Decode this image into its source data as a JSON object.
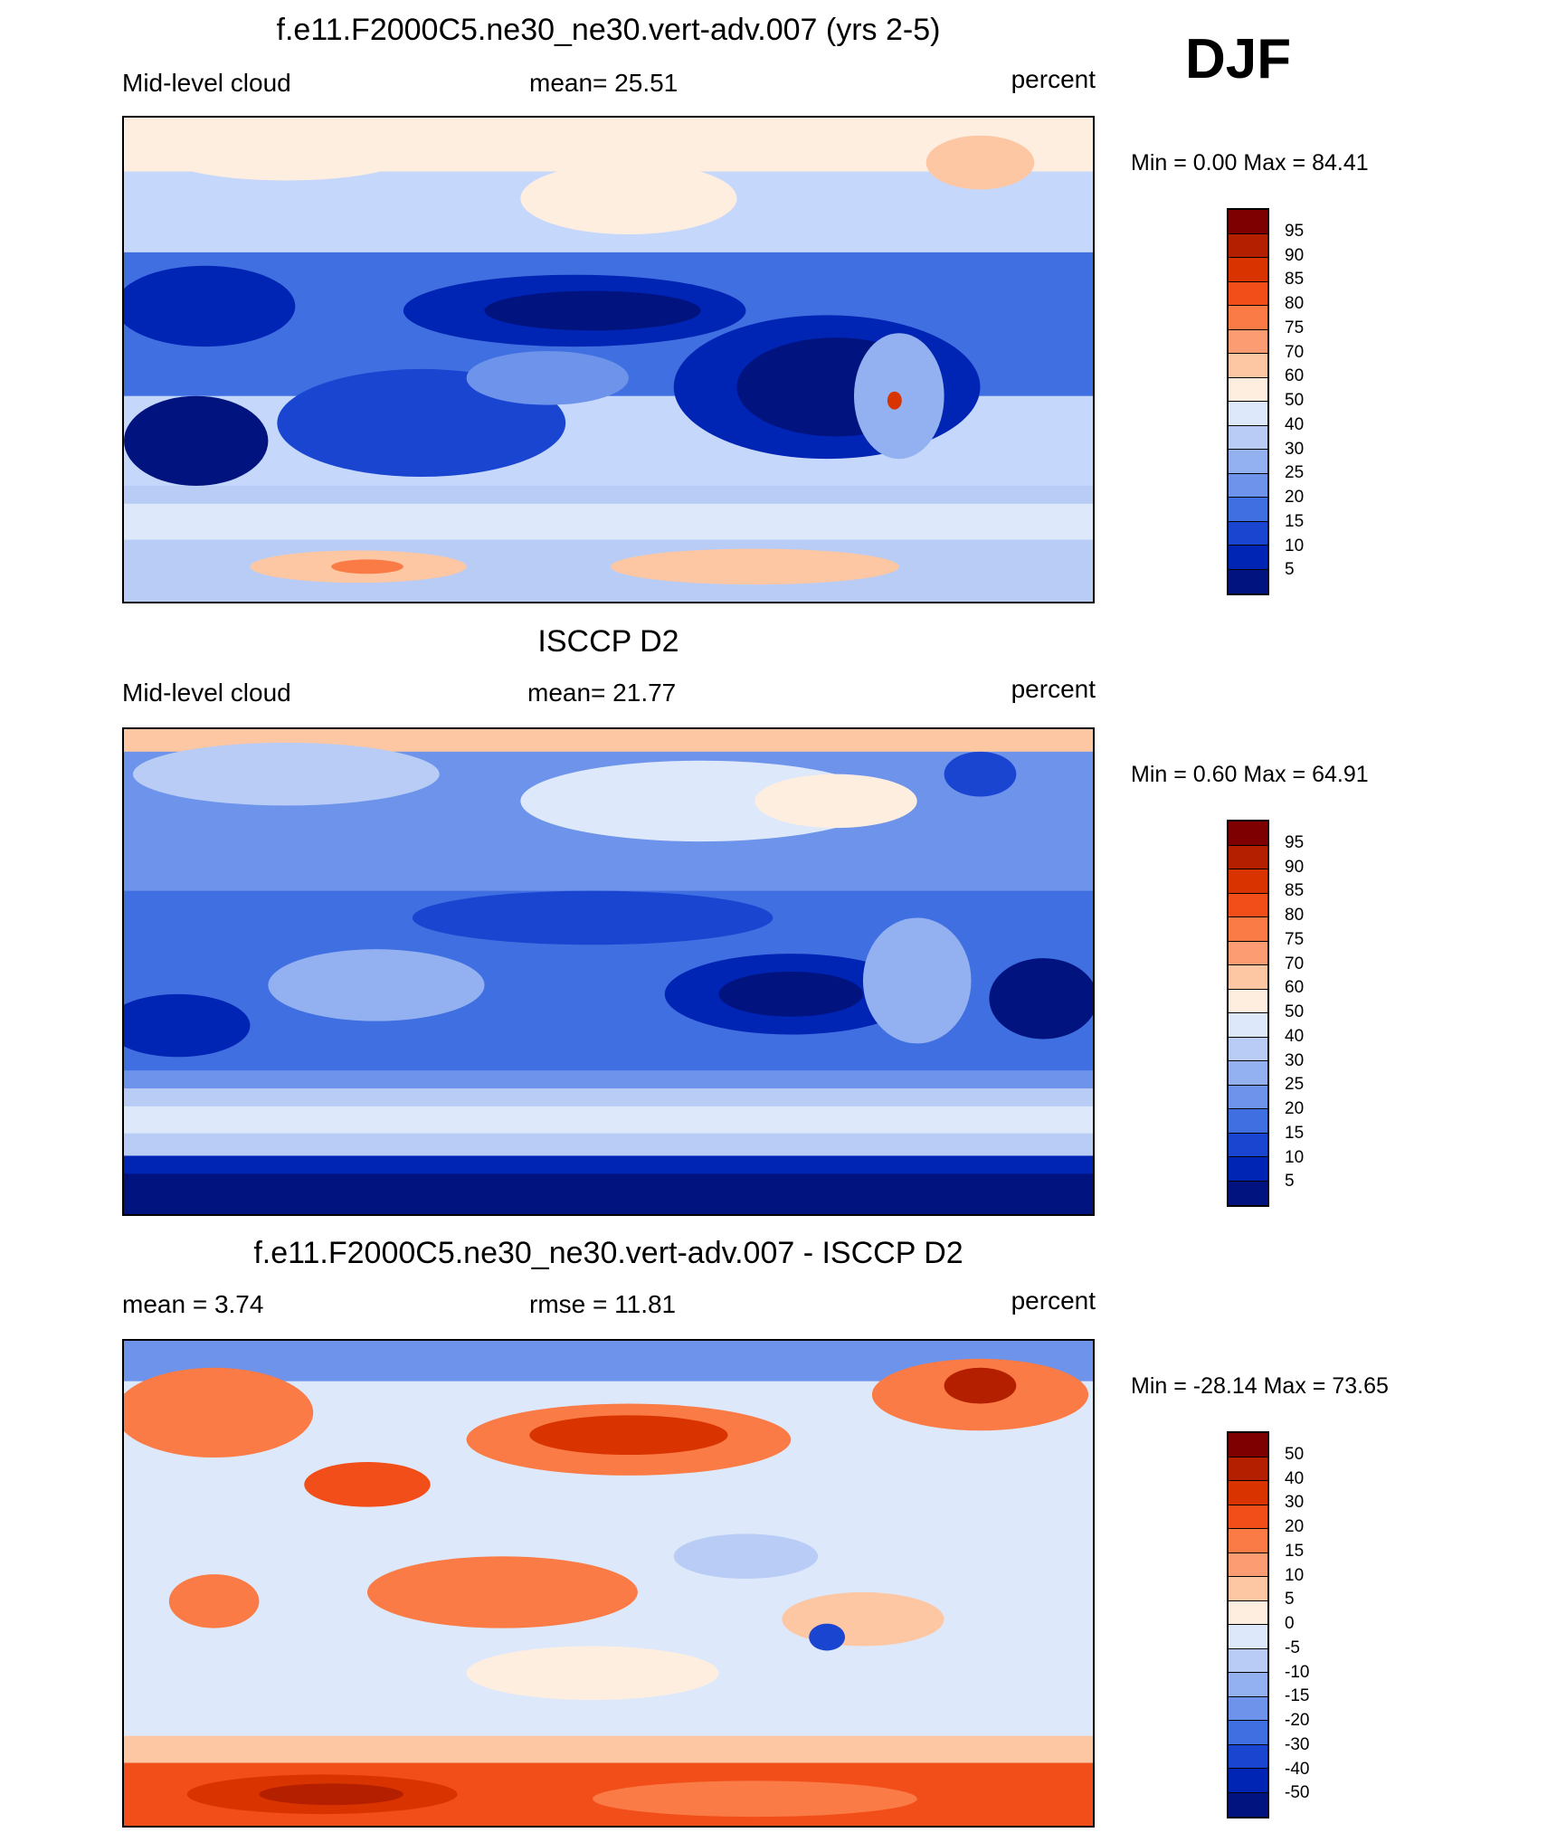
{
  "season": "DJF",
  "panels": [
    {
      "title": "f.e11.F2000C5.ne30_ne30.vert-adv.007 (yrs 2-5)",
      "left_label": "Mid-level cloud",
      "center_label": "mean=  25.51",
      "right_label": "percent",
      "minmax": "Min =   0.00 Max =  84.41",
      "colorbar_levels": [
        "95",
        "90",
        "85",
        "80",
        "75",
        "70",
        "60",
        "50",
        "40",
        "30",
        "25",
        "20",
        "15",
        "10",
        "5"
      ],
      "colorbar_colors": [
        "#7f0000",
        "#b41f00",
        "#d93400",
        "#f24e1a",
        "#fa7b45",
        "#fc9c72",
        "#fdc7a4",
        "#fdeee0",
        "#dde9fb",
        "#b8ccf5",
        "#93b1f0",
        "#6d93ea",
        "#3f6fe0",
        "#1a45d1",
        "#0024b4",
        "#00137f"
      ]
    },
    {
      "title": "ISCCP D2",
      "left_label": "Mid-level cloud",
      "center_label": "mean=  21.77",
      "right_label": "percent",
      "minmax": "Min =   0.60 Max =  64.91",
      "colorbar_levels": [
        "95",
        "90",
        "85",
        "80",
        "75",
        "70",
        "60",
        "50",
        "40",
        "30",
        "25",
        "20",
        "15",
        "10",
        "5"
      ],
      "colorbar_colors": [
        "#7f0000",
        "#b41f00",
        "#d93400",
        "#f24e1a",
        "#fa7b45",
        "#fc9c72",
        "#fdc7a4",
        "#fdeee0",
        "#dde9fb",
        "#b8ccf5",
        "#93b1f0",
        "#6d93ea",
        "#3f6fe0",
        "#1a45d1",
        "#0024b4",
        "#00137f"
      ]
    },
    {
      "title": "f.e11.F2000C5.ne30_ne30.vert-adv.007 - ISCCP D2",
      "left_label": "mean =   3.74",
      "center_label": "rmse =  11.81",
      "right_label": "percent",
      "minmax": "Min = -28.14 Max =  73.65",
      "colorbar_levels": [
        "50",
        "40",
        "30",
        "20",
        "15",
        "10",
        "5",
        "0",
        "-5",
        "-10",
        "-15",
        "-20",
        "-30",
        "-40",
        "-50"
      ],
      "colorbar_colors": [
        "#7f0000",
        "#b41f00",
        "#d93400",
        "#f24e1a",
        "#fa7b45",
        "#fc9c72",
        "#fdc7a4",
        "#fdeee0",
        "#dde9fb",
        "#b8ccf5",
        "#93b1f0",
        "#6d93ea",
        "#3f6fe0",
        "#1a45d1",
        "#0024b4",
        "#00137f"
      ]
    }
  ]
}
